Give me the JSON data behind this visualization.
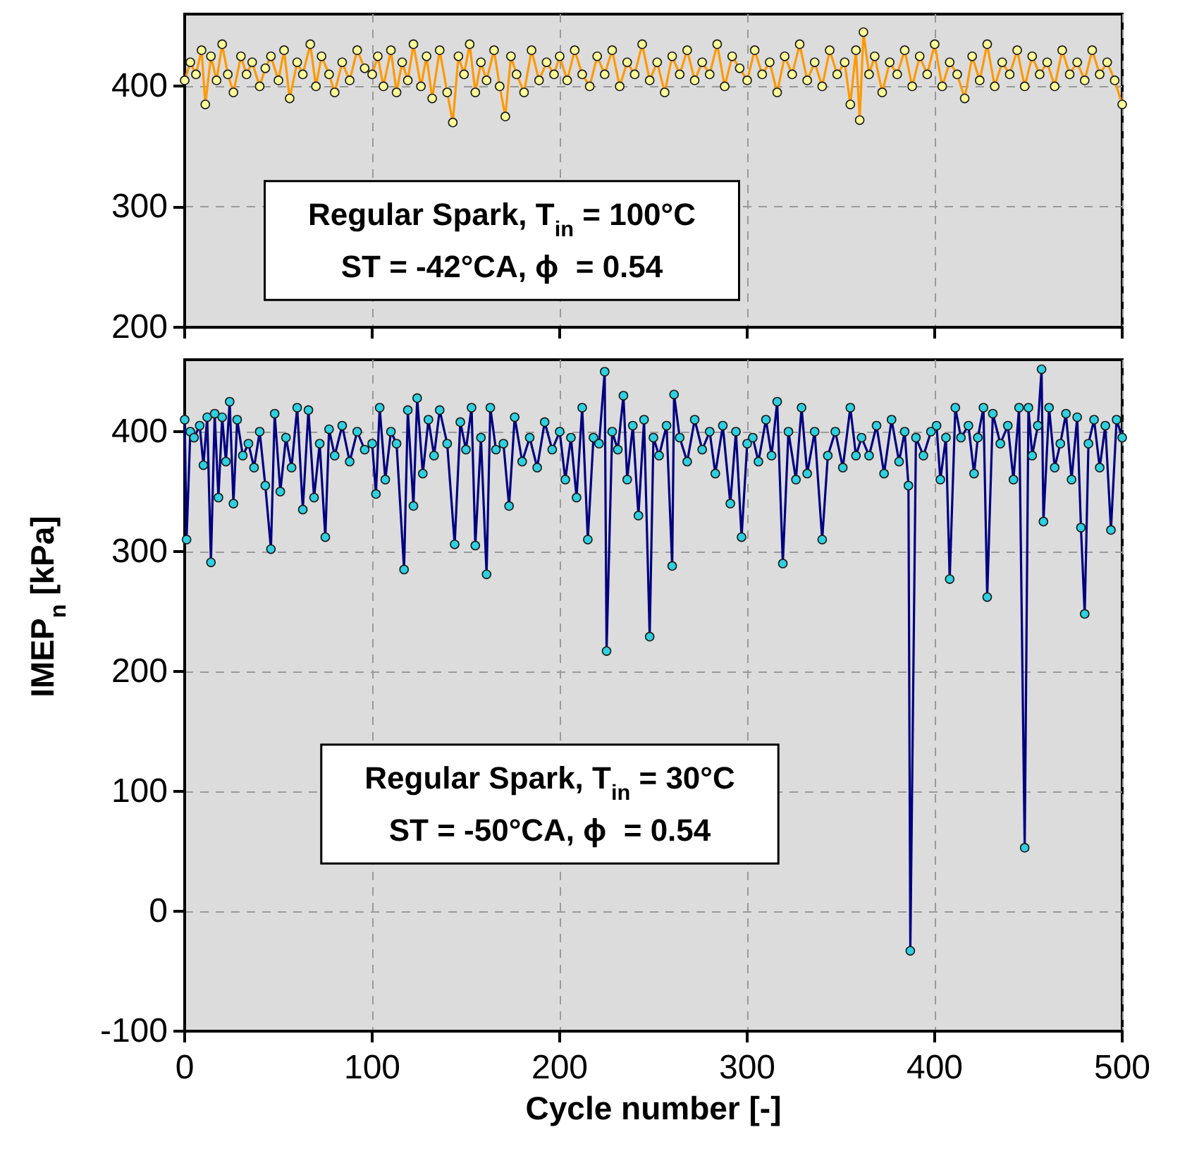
{
  "chart_data": [
    {
      "type": "line",
      "xlim": [
        0,
        500
      ],
      "xticks": [
        0,
        100,
        200,
        300,
        400,
        500
      ],
      "ylim": [
        200,
        460
      ],
      "yticks": [
        200,
        300,
        400
      ],
      "tick_labels": "y",
      "grid": true,
      "marker": "circle",
      "line_style": "solid",
      "annotations": [
        "Regular Spark, T$_{in}$ = 100°C\nST = -42°CA, ϕ  = 0.54"
      ],
      "series": [
        {
          "color": "#ff9900",
          "x": [
            0,
            3,
            6,
            9,
            11,
            14,
            17,
            20,
            23,
            26,
            30,
            33,
            36,
            40,
            43,
            46,
            50,
            53,
            56,
            60,
            63,
            67,
            70,
            73,
            77,
            80,
            84,
            88,
            92,
            96,
            100,
            103,
            106,
            110,
            113,
            116,
            119,
            122,
            126,
            129,
            132,
            136,
            140,
            143,
            146,
            149,
            152,
            155,
            158,
            161,
            165,
            168,
            171,
            174,
            177,
            181,
            185,
            189,
            193,
            197,
            200,
            204,
            208,
            212,
            216,
            220,
            224,
            228,
            232,
            236,
            240,
            244,
            248,
            252,
            256,
            260,
            264,
            268,
            272,
            276,
            280,
            284,
            288,
            292,
            296,
            300,
            304,
            308,
            312,
            316,
            320,
            324,
            328,
            332,
            336,
            340,
            344,
            348,
            352,
            355,
            358,
            360,
            362,
            365,
            368,
            372,
            376,
            380,
            384,
            388,
            392,
            396,
            400,
            404,
            408,
            412,
            416,
            420,
            424,
            428,
            432,
            436,
            440,
            444,
            448,
            452,
            456,
            460,
            464,
            468,
            472,
            476,
            480,
            484,
            488,
            492,
            496,
            500
          ],
          "values": [
            405,
            420,
            410,
            430,
            385,
            425,
            405,
            435,
            410,
            395,
            425,
            410,
            420,
            400,
            415,
            425,
            405,
            430,
            390,
            420,
            410,
            435,
            400,
            425,
            410,
            395,
            420,
            405,
            430,
            415,
            410,
            425,
            400,
            430,
            395,
            420,
            405,
            435,
            400,
            425,
            390,
            430,
            395,
            370,
            425,
            410,
            435,
            395,
            420,
            405,
            430,
            400,
            375,
            425,
            410,
            395,
            430,
            405,
            420,
            410,
            425,
            405,
            430,
            410,
            400,
            425,
            410,
            430,
            400,
            420,
            410,
            435,
            405,
            420,
            395,
            425,
            410,
            430,
            405,
            420,
            410,
            435,
            400,
            425,
            415,
            405,
            430,
            410,
            420,
            395,
            425,
            410,
            435,
            405,
            420,
            400,
            430,
            410,
            420,
            385,
            430,
            372,
            445,
            410,
            425,
            395,
            420,
            410,
            430,
            400,
            425,
            410,
            435,
            400,
            420,
            410,
            390,
            425,
            405,
            435,
            400,
            420,
            410,
            430,
            400,
            425,
            410,
            420,
            400,
            430,
            410,
            420,
            405,
            430,
            410,
            420,
            405,
            385
          ]
        }
      ]
    },
    {
      "type": "line",
      "xlim": [
        0,
        500
      ],
      "xticks": [
        0,
        100,
        200,
        300,
        400,
        500
      ],
      "ylim": [
        -100,
        460
      ],
      "yticks": [
        -100,
        0,
        100,
        200,
        300,
        400
      ],
      "grid": true,
      "marker": "circle",
      "line_style": "solid",
      "xlabel": "Cycle number [-]",
      "ylabel": "IMEP$_{n}$ [kPa]",
      "annotations": [
        "Regular Spark, T$_{in}$ = 30°C\nST = -50°CA, ϕ  = 0.54"
      ],
      "series": [
        {
          "color": "#000080",
          "x": [
            0,
            1,
            3,
            5,
            8,
            10,
            12,
            14,
            16,
            18,
            20,
            22,
            24,
            26,
            28,
            31,
            34,
            37,
            40,
            43,
            46,
            48,
            51,
            54,
            57,
            60,
            63,
            66,
            69,
            72,
            75,
            77,
            80,
            84,
            88,
            92,
            96,
            100,
            102,
            104,
            107,
            110,
            113,
            117,
            119,
            122,
            124,
            127,
            130,
            133,
            136,
            140,
            144,
            147,
            150,
            153,
            155,
            158,
            161,
            163,
            166,
            170,
            173,
            176,
            180,
            184,
            188,
            192,
            196,
            200,
            203,
            206,
            209,
            212,
            215,
            218,
            221,
            224,
            225,
            228,
            231,
            234,
            236,
            239,
            242,
            245,
            248,
            250,
            253,
            257,
            260,
            261,
            264,
            268,
            272,
            276,
            280,
            283,
            287,
            291,
            294,
            297,
            300,
            303,
            306,
            310,
            313,
            316,
            319,
            322,
            326,
            329,
            332,
            336,
            340,
            343,
            347,
            351,
            355,
            358,
            361,
            365,
            369,
            373,
            377,
            381,
            384,
            386,
            387,
            390,
            394,
            398,
            401,
            403,
            406,
            408,
            411,
            414,
            418,
            421,
            423,
            426,
            428,
            431,
            435,
            439,
            442,
            445,
            448,
            450,
            452,
            455,
            457,
            458,
            461,
            464,
            467,
            470,
            473,
            476,
            478,
            480,
            482,
            485,
            488,
            491,
            494,
            497,
            500
          ],
          "values": [
            410,
            310,
            400,
            395,
            405,
            372,
            412,
            291,
            415,
            345,
            412,
            375,
            425,
            340,
            410,
            380,
            390,
            370,
            400,
            355,
            302,
            415,
            350,
            395,
            370,
            420,
            335,
            418,
            345,
            390,
            312,
            402,
            380,
            405,
            375,
            400,
            385,
            390,
            348,
            420,
            360,
            400,
            390,
            285,
            418,
            338,
            428,
            365,
            410,
            380,
            418,
            390,
            306,
            408,
            385,
            420,
            305,
            395,
            281,
            420,
            385,
            390,
            338,
            412,
            375,
            395,
            370,
            408,
            385,
            400,
            360,
            395,
            345,
            420,
            310,
            395,
            390,
            450,
            217,
            400,
            385,
            430,
            360,
            405,
            330,
            410,
            229,
            395,
            380,
            405,
            288,
            431,
            395,
            375,
            410,
            385,
            400,
            365,
            405,
            340,
            400,
            312,
            390,
            395,
            375,
            410,
            380,
            425,
            290,
            400,
            360,
            420,
            365,
            400,
            310,
            380,
            400,
            370,
            420,
            380,
            395,
            380,
            405,
            365,
            410,
            375,
            400,
            355,
            -33,
            395,
            380,
            400,
            405,
            360,
            395,
            277,
            420,
            395,
            405,
            365,
            395,
            420,
            262,
            415,
            390,
            405,
            360,
            420,
            53,
            420,
            380,
            405,
            452,
            325,
            420,
            370,
            390,
            415,
            360,
            412,
            320,
            248,
            390,
            410,
            370,
            405,
            318,
            410,
            395
          ]
        }
      ]
    }
  ]
}
